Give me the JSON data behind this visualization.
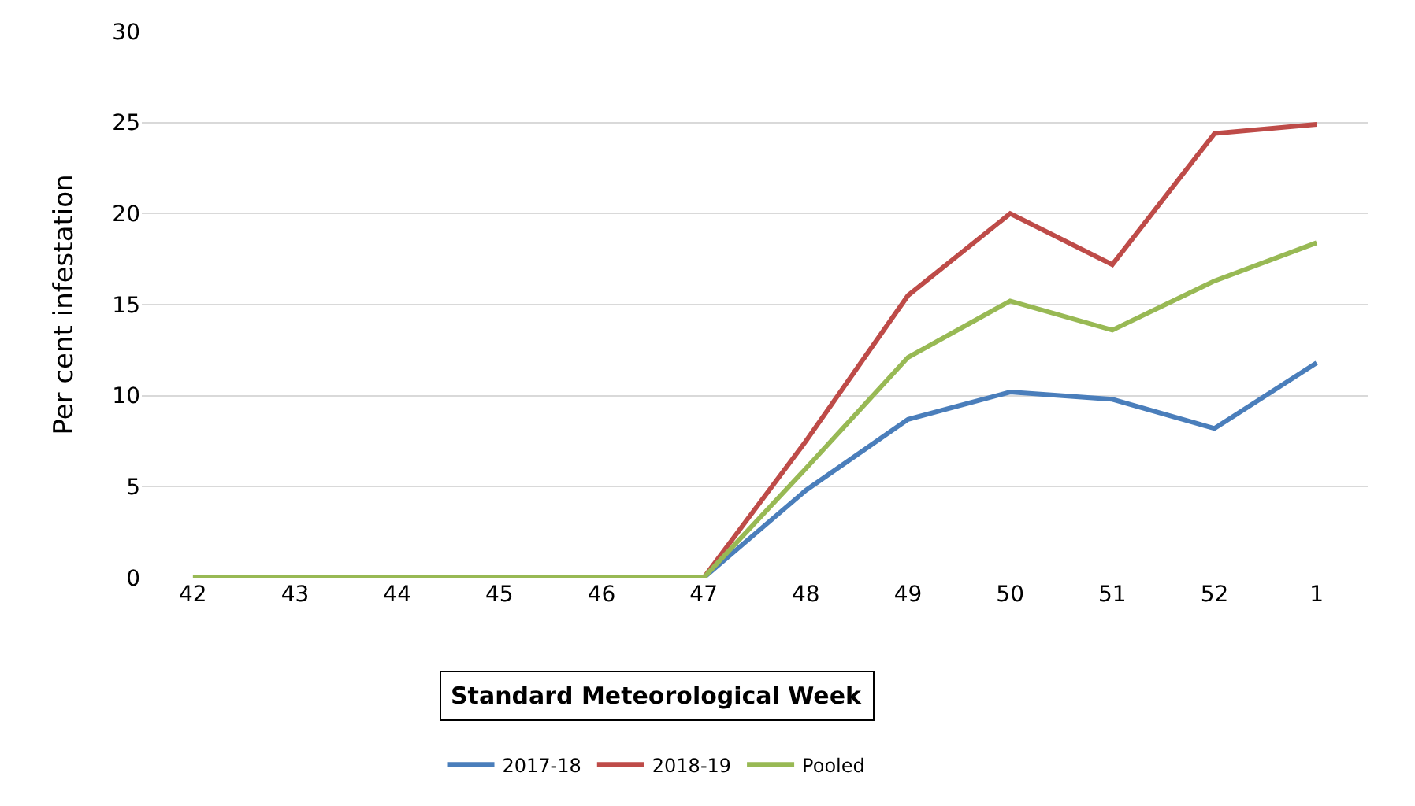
{
  "chart_data": {
    "type": "line",
    "xlabel": "Standard Meteorological Week",
    "ylabel": "Per cent infestation",
    "categories": [
      "42",
      "43",
      "44",
      "45",
      "46",
      "47",
      "48",
      "49",
      "50",
      "51",
      "52",
      "1"
    ],
    "series": [
      {
        "name": "2017-18",
        "color": "#4a7ebb",
        "values": [
          null,
          null,
          null,
          null,
          null,
          0,
          4.8,
          8.7,
          10.2,
          9.8,
          8.2,
          11.8
        ]
      },
      {
        "name": "2018-19",
        "color": "#be4b48",
        "values": [
          null,
          null,
          null,
          null,
          null,
          0,
          7.5,
          15.5,
          20,
          17.2,
          24.4,
          24.9
        ]
      },
      {
        "name": "Pooled",
        "color": "#98b954",
        "values": [
          0,
          0,
          0,
          0,
          0,
          0,
          6,
          12.1,
          15.2,
          13.6,
          16.3,
          18.4
        ]
      }
    ],
    "ylim": [
      0,
      30
    ],
    "yticks": [
      0,
      5,
      10,
      15,
      20,
      25,
      30
    ],
    "grid": "y",
    "legend": "bottom",
    "marker": "none",
    "line_style": "solid"
  }
}
